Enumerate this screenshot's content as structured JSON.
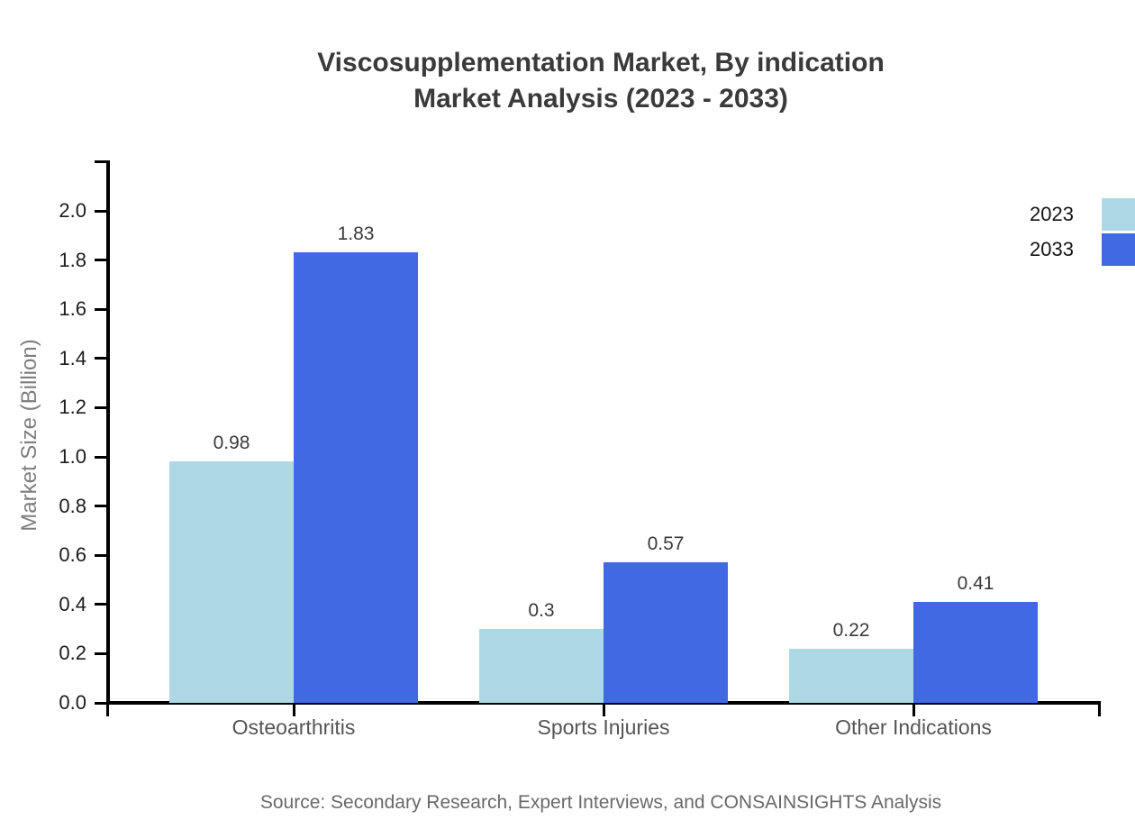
{
  "title": {
    "line1": "Viscosupplementation Market, By indication",
    "line2": "Market Analysis (2023 - 2033)"
  },
  "source": "Source: Secondary Research, Expert Interviews, and CONSAINSIGHTS Analysis",
  "chart_data": {
    "type": "bar",
    "categories": [
      "Osteoarthritis",
      "Sports Injuries",
      "Other Indications"
    ],
    "series": [
      {
        "name": "2023",
        "color": "#ADD8E6",
        "values": [
          0.98,
          0.3,
          0.22
        ]
      },
      {
        "name": "2033",
        "color": "#4169E1",
        "values": [
          1.83,
          0.57,
          0.41
        ]
      }
    ],
    "value_labels": [
      [
        "0.98",
        "0.3",
        "0.22"
      ],
      [
        "1.83",
        "0.57",
        "0.41"
      ]
    ],
    "title": "Viscosupplementation Market, By indication Market Analysis (2023 - 2033)",
    "xlabel": "",
    "ylabel": "Market Size (Billion)",
    "ylim": [
      0,
      2.2
    ],
    "ytick_step": 0.2,
    "ytick_max": 2.0,
    "grid": false,
    "legend_position": "top-right",
    "axis_color": "#000000",
    "tick_label_color": "#1c1c1c",
    "category_label_color": "#555555",
    "value_label_color": "#3a3a3a",
    "title_color": "#3a3a3a",
    "source_color": "#696969"
  }
}
